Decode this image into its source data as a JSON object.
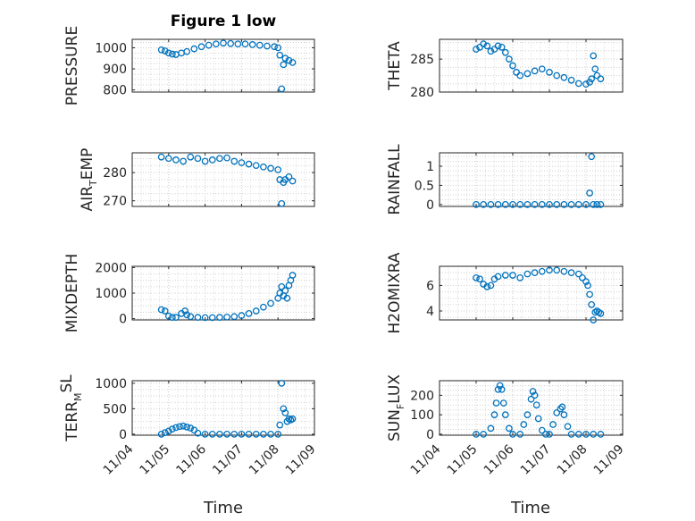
{
  "chart_data": [
    {
      "type": "scatter",
      "title": "Figure 1 low",
      "ylabel": "PRESSURE",
      "yticks": [
        "800",
        "900",
        "1000"
      ],
      "ylim": [
        790,
        1040
      ],
      "xticks": [
        "11/04",
        "11/05",
        "11/06",
        "11/07",
        "11/08",
        "11/09"
      ],
      "xlim": [
        0,
        5
      ],
      "grid": true,
      "x": [
        0.8,
        0.9,
        1.0,
        1.1,
        1.2,
        1.35,
        1.5,
        1.7,
        1.9,
        2.1,
        2.3,
        2.5,
        2.7,
        2.9,
        3.1,
        3.3,
        3.5,
        3.7,
        3.9,
        4.0,
        4.05,
        4.1,
        4.15,
        4.2,
        4.3,
        4.4
      ],
      "y": [
        990,
        985,
        975,
        970,
        968,
        975,
        982,
        995,
        1005,
        1012,
        1018,
        1022,
        1020,
        1018,
        1018,
        1015,
        1012,
        1008,
        1005,
        1000,
        965,
        805,
        920,
        950,
        940,
        930
      ]
    },
    {
      "type": "scatter",
      "ylabel": "THETA",
      "yticks": [
        "280",
        "285"
      ],
      "ylim": [
        280,
        288
      ],
      "xticks": [
        "11/04",
        "11/05",
        "11/06",
        "11/07",
        "11/08",
        "11/09"
      ],
      "xlim": [
        0,
        5
      ],
      "grid": true,
      "x": [
        1.0,
        1.1,
        1.2,
        1.3,
        1.4,
        1.5,
        1.6,
        1.7,
        1.8,
        1.9,
        2.0,
        2.1,
        2.2,
        2.4,
        2.6,
        2.8,
        3.0,
        3.2,
        3.4,
        3.6,
        3.8,
        4.0,
        4.1,
        4.15,
        4.2,
        4.25,
        4.3,
        4.4
      ],
      "y": [
        286.5,
        286.8,
        287.3,
        287.0,
        286.2,
        286.5,
        287.0,
        286.8,
        286.0,
        285.0,
        284.0,
        283.0,
        282.5,
        282.8,
        283.2,
        283.5,
        283.0,
        282.5,
        282.2,
        281.8,
        281.3,
        281.2,
        281.5,
        282.0,
        285.5,
        283.5,
        282.5,
        282.0
      ]
    },
    {
      "type": "scatter",
      "ylabel": "AIR",
      "ylabel_sub": "T",
      "ylabel_rest": "EMP",
      "yticks": [
        "270",
        "280"
      ],
      "ylim": [
        268,
        287
      ],
      "xticks": [
        "11/04",
        "11/05",
        "11/06",
        "11/07",
        "11/08",
        "11/09"
      ],
      "xlim": [
        0,
        5
      ],
      "grid": true,
      "x": [
        0.8,
        1.0,
        1.2,
        1.4,
        1.6,
        1.8,
        2.0,
        2.2,
        2.4,
        2.6,
        2.8,
        3.0,
        3.2,
        3.4,
        3.6,
        3.8,
        4.0,
        4.05,
        4.1,
        4.15,
        4.2,
        4.3,
        4.4
      ],
      "y": [
        285.5,
        285.0,
        284.5,
        284.0,
        285.5,
        285.0,
        284.0,
        284.5,
        285.0,
        285.2,
        284.0,
        283.5,
        283.0,
        282.5,
        282.0,
        281.5,
        281.0,
        277.5,
        269.0,
        276.5,
        277.5,
        278.5,
        277.0
      ]
    },
    {
      "type": "scatter",
      "ylabel": "RAINFALL",
      "yticks": [
        "0",
        "0.5",
        "1"
      ],
      "ylim": [
        -0.05,
        1.35
      ],
      "xticks": [
        "11/04",
        "11/05",
        "11/06",
        "11/07",
        "11/08",
        "11/09"
      ],
      "xlim": [
        0,
        5
      ],
      "grid": true,
      "x": [
        1.0,
        1.2,
        1.4,
        1.6,
        1.8,
        2.0,
        2.2,
        2.4,
        2.6,
        2.8,
        3.0,
        3.2,
        3.4,
        3.6,
        3.8,
        4.0,
        4.1,
        4.15,
        4.2,
        4.3,
        4.4
      ],
      "y": [
        0,
        0,
        0,
        0,
        0,
        0,
        0,
        0,
        0,
        0,
        0,
        0,
        0,
        0,
        0,
        0,
        0.3,
        1.25,
        0,
        0,
        0
      ]
    },
    {
      "type": "scatter",
      "ylabel": "MIXDEPTH",
      "yticks": [
        "0",
        "1000",
        "2000"
      ],
      "ylim": [
        -50,
        2050
      ],
      "xticks": [
        "11/04",
        "11/05",
        "11/06",
        "11/07",
        "11/08",
        "11/09"
      ],
      "xlim": [
        0,
        5
      ],
      "grid": true,
      "x": [
        0.8,
        0.9,
        1.0,
        1.1,
        1.2,
        1.35,
        1.45,
        1.5,
        1.6,
        1.8,
        2.0,
        2.2,
        2.4,
        2.6,
        2.8,
        3.0,
        3.2,
        3.4,
        3.6,
        3.8,
        4.0,
        4.05,
        4.1,
        4.15,
        4.2,
        4.25,
        4.3,
        4.35,
        4.4
      ],
      "y": [
        350,
        300,
        100,
        50,
        50,
        200,
        300,
        150,
        80,
        50,
        40,
        40,
        50,
        60,
        80,
        120,
        200,
        300,
        450,
        600,
        800,
        1000,
        1250,
        900,
        1100,
        800,
        1300,
        1500,
        1700
      ]
    },
    {
      "type": "scatter",
      "ylabel": "H2OMIXRA",
      "yticks": [
        "4",
        "6"
      ],
      "ylim": [
        3.3,
        7.5
      ],
      "xticks": [
        "11/04",
        "11/05",
        "11/06",
        "11/07",
        "11/08",
        "11/09"
      ],
      "xlim": [
        0,
        5
      ],
      "grid": true,
      "x": [
        1.0,
        1.1,
        1.2,
        1.3,
        1.4,
        1.5,
        1.6,
        1.8,
        2.0,
        2.2,
        2.4,
        2.6,
        2.8,
        3.0,
        3.2,
        3.4,
        3.6,
        3.8,
        3.9,
        4.0,
        4.05,
        4.1,
        4.15,
        4.2,
        4.25,
        4.3,
        4.35,
        4.4
      ],
      "y": [
        6.6,
        6.5,
        6.1,
        5.9,
        6.0,
        6.5,
        6.7,
        6.8,
        6.8,
        6.6,
        6.9,
        7.0,
        7.1,
        7.2,
        7.2,
        7.1,
        7.0,
        6.9,
        6.6,
        6.3,
        6.0,
        5.3,
        4.5,
        3.3,
        3.9,
        4.0,
        3.9,
        3.8
      ]
    },
    {
      "type": "scatter",
      "ylabel": "TERR",
      "ylabel_sup1": "M",
      "ylabel_rest": "SL",
      "yticks": [
        "0",
        "500",
        "1000"
      ],
      "ylim": [
        -20,
        1050
      ],
      "xticks": [
        "11/04",
        "11/05",
        "11/06",
        "11/07",
        "11/08",
        "11/09"
      ],
      "xlim": [
        0,
        5
      ],
      "grid": true,
      "x": [
        0.8,
        0.9,
        1.0,
        1.1,
        1.2,
        1.3,
        1.4,
        1.5,
        1.6,
        1.7,
        1.8,
        2.0,
        2.2,
        2.4,
        2.6,
        2.8,
        3.0,
        3.2,
        3.4,
        3.6,
        3.8,
        4.0,
        4.05,
        4.1,
        4.15,
        4.2,
        4.25,
        4.3,
        4.35,
        4.4
      ],
      "y": [
        0,
        30,
        60,
        100,
        130,
        150,
        160,
        140,
        120,
        80,
        20,
        0,
        0,
        0,
        0,
        0,
        0,
        0,
        0,
        0,
        0,
        0,
        180,
        1000,
        500,
        420,
        250,
        300,
        280,
        300
      ]
    },
    {
      "type": "scatter",
      "ylabel": "SUN",
      "ylabel_sub": "F",
      "ylabel_rest": "LUX",
      "yticks": [
        "0",
        "100",
        "200"
      ],
      "ylim": [
        -5,
        275
      ],
      "xticks": [
        "11/04",
        "11/05",
        "11/06",
        "11/07",
        "11/08",
        "11/09"
      ],
      "xlim": [
        0,
        5
      ],
      "grid": true,
      "x": [
        1.0,
        1.2,
        1.4,
        1.5,
        1.55,
        1.6,
        1.65,
        1.7,
        1.75,
        1.8,
        1.9,
        2.0,
        2.2,
        2.3,
        2.4,
        2.5,
        2.55,
        2.6,
        2.65,
        2.7,
        2.8,
        2.9,
        3.0,
        3.1,
        3.2,
        3.3,
        3.35,
        3.4,
        3.5,
        3.6,
        3.8,
        4.0,
        4.2,
        4.4
      ],
      "y": [
        0,
        0,
        30,
        100,
        160,
        230,
        250,
        230,
        160,
        100,
        30,
        0,
        0,
        50,
        100,
        180,
        220,
        200,
        150,
        80,
        20,
        0,
        0,
        50,
        110,
        130,
        140,
        100,
        40,
        0,
        0,
        0,
        0,
        0
      ]
    }
  ],
  "xlabel": "Time",
  "color": "#0072BD"
}
